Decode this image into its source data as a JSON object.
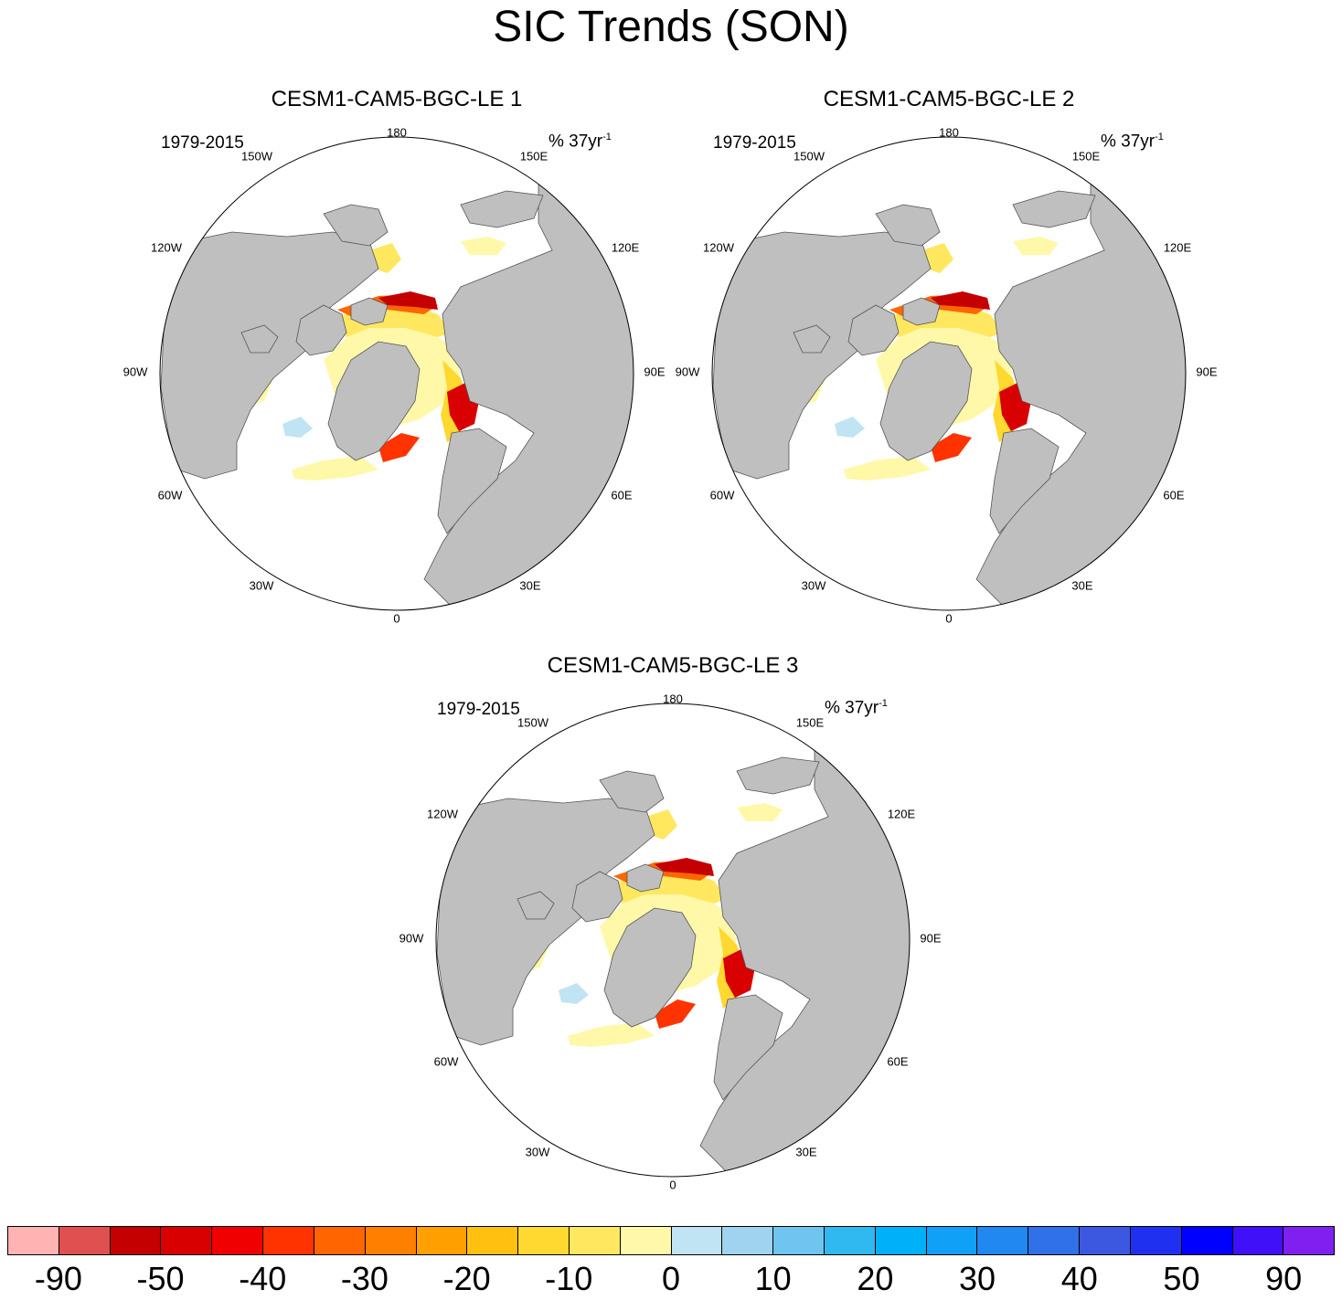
{
  "figure": {
    "title": "SIC Trends (SON)",
    "period": "1979-2015",
    "units_text": "% 37yr",
    "units_exp": "-1"
  },
  "longitude_labels": [
    "180",
    "150E",
    "120E",
    "90E",
    "60E",
    "30E",
    "0",
    "30W",
    "60W",
    "90W",
    "120W",
    "150W"
  ],
  "panels": [
    {
      "title": "CESM1-CAM5-BGC-LE 1"
    },
    {
      "title": "CESM1-CAM5-BGC-LE 2"
    },
    {
      "title": "CESM1-CAM5-BGC-LE 3"
    }
  ],
  "colors": {
    "land": "#bfbfbf",
    "ocean": "#ffffff",
    "colorbar": [
      "#ffb3b3",
      "#e05050",
      "#c40000",
      "#d80000",
      "#f00000",
      "#ff3300",
      "#ff6600",
      "#ff8000",
      "#ffa000",
      "#ffc010",
      "#ffd830",
      "#ffe860",
      "#fff8a8",
      "#c0e4f4",
      "#a0d4ee",
      "#70c4f0",
      "#30b8f0",
      "#00b0f8",
      "#10a0f8",
      "#2088f0",
      "#3070e8",
      "#3c58e0",
      "#2030f0",
      "#0000ff",
      "#4010f8",
      "#8020f0"
    ]
  },
  "colorbar_labels": [
    "-90",
    "-50",
    "-40",
    "-30",
    "-20",
    "-10",
    "0",
    "10",
    "20",
    "30",
    "40",
    "50",
    "90"
  ]
}
